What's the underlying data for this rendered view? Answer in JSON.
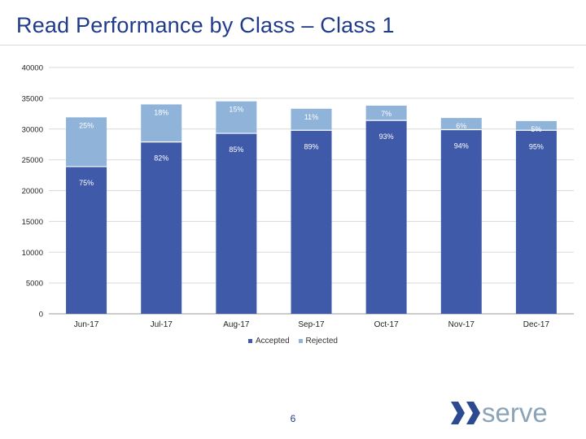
{
  "slide": {
    "title": "Read Performance by Class – Class 1",
    "page_number": "6",
    "logo_text": "serve"
  },
  "colors": {
    "accepted": "#3f5aa8",
    "rejected": "#8fb3d9",
    "title": "#1f3b8a",
    "gridline": "#d9d9d9"
  },
  "chart_data": {
    "type": "bar",
    "stacked": true,
    "categories": [
      "Jun-17",
      "Jul-17",
      "Aug-17",
      "Sep-17",
      "Oct-17",
      "Nov-17",
      "Dec-17"
    ],
    "series": [
      {
        "name": "Accepted",
        "values": [
          23900,
          27900,
          29300,
          29800,
          31400,
          29900,
          29800
        ],
        "labels": [
          "75%",
          "82%",
          "85%",
          "89%",
          "93%",
          "94%",
          "95%"
        ]
      },
      {
        "name": "Rejected",
        "values": [
          8000,
          6100,
          5200,
          3500,
          2400,
          1900,
          1500
        ],
        "labels": [
          "25%",
          "18%",
          "15%",
          "11%",
          "7%",
          "6%",
          "5%"
        ]
      }
    ],
    "ylim": [
      0,
      40000
    ],
    "yticks": [
      "0",
      "5000",
      "10000",
      "15000",
      "20000",
      "25000",
      "30000",
      "35000",
      "40000"
    ],
    "grid": true,
    "legend_position": "bottom"
  }
}
